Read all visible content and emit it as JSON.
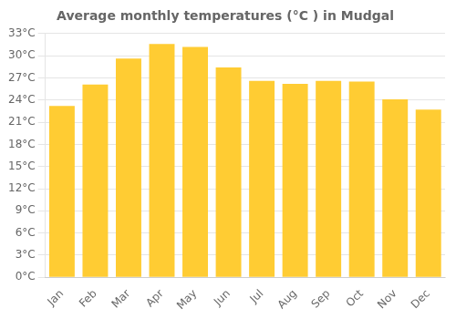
{
  "chart_data": {
    "type": "bar",
    "title": "Average monthly temperatures (°C ) in Mudgal",
    "categories": [
      "Jan",
      "Feb",
      "Mar",
      "Apr",
      "May",
      "Jun",
      "Jul",
      "Aug",
      "Sep",
      "Oct",
      "Nov",
      "Dec"
    ],
    "values": [
      23.2,
      26.1,
      29.6,
      31.6,
      31.2,
      28.4,
      26.6,
      26.2,
      26.6,
      26.5,
      24.1,
      22.7
    ],
    "color": "#FFCC33",
    "ylim": [
      0,
      33
    ],
    "yticks": [
      {
        "value": 0,
        "label": "0°C"
      },
      {
        "value": 3,
        "label": "3°C"
      },
      {
        "value": 6,
        "label": "6°C"
      },
      {
        "value": 9,
        "label": "9°C"
      },
      {
        "value": 12,
        "label": "12°C"
      },
      {
        "value": 15,
        "label": "15°C"
      },
      {
        "value": 18,
        "label": "18°C"
      },
      {
        "value": 21,
        "label": "21°C"
      },
      {
        "value": 24,
        "label": "24°C"
      },
      {
        "value": 27,
        "label": "27°C"
      },
      {
        "value": 30,
        "label": "30°C"
      },
      {
        "value": 33,
        "label": "33°C"
      }
    ],
    "grid": true
  }
}
